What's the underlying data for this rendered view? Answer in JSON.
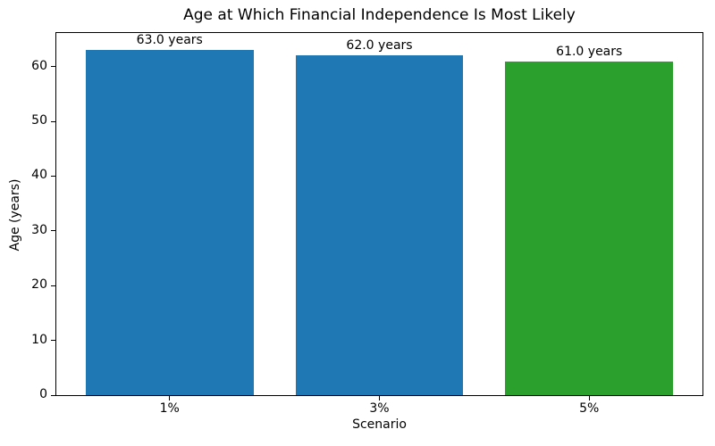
{
  "chart_data": {
    "type": "bar",
    "title": "Age at Which Financial Independence Is Most Likely",
    "xlabel": "Scenario",
    "ylabel": "Age (years)",
    "categories": [
      "1%",
      "3%",
      "5%"
    ],
    "values": [
      63.0,
      62.0,
      61.0
    ],
    "bar_labels": [
      "63.0 years",
      "62.0 years",
      "61.0 years"
    ],
    "bar_colors": [
      "#1f77b4",
      "#1f77b4",
      "#2ca02c"
    ],
    "yticks": [
      0,
      10,
      20,
      30,
      40,
      50,
      60
    ],
    "ylim": [
      0,
      66.15
    ],
    "xlim": [
      -0.54,
      2.54
    ],
    "bar_width": 0.8,
    "grid": false,
    "legend": "none",
    "background_color": "#ffffff",
    "spine_color": "#000000"
  }
}
